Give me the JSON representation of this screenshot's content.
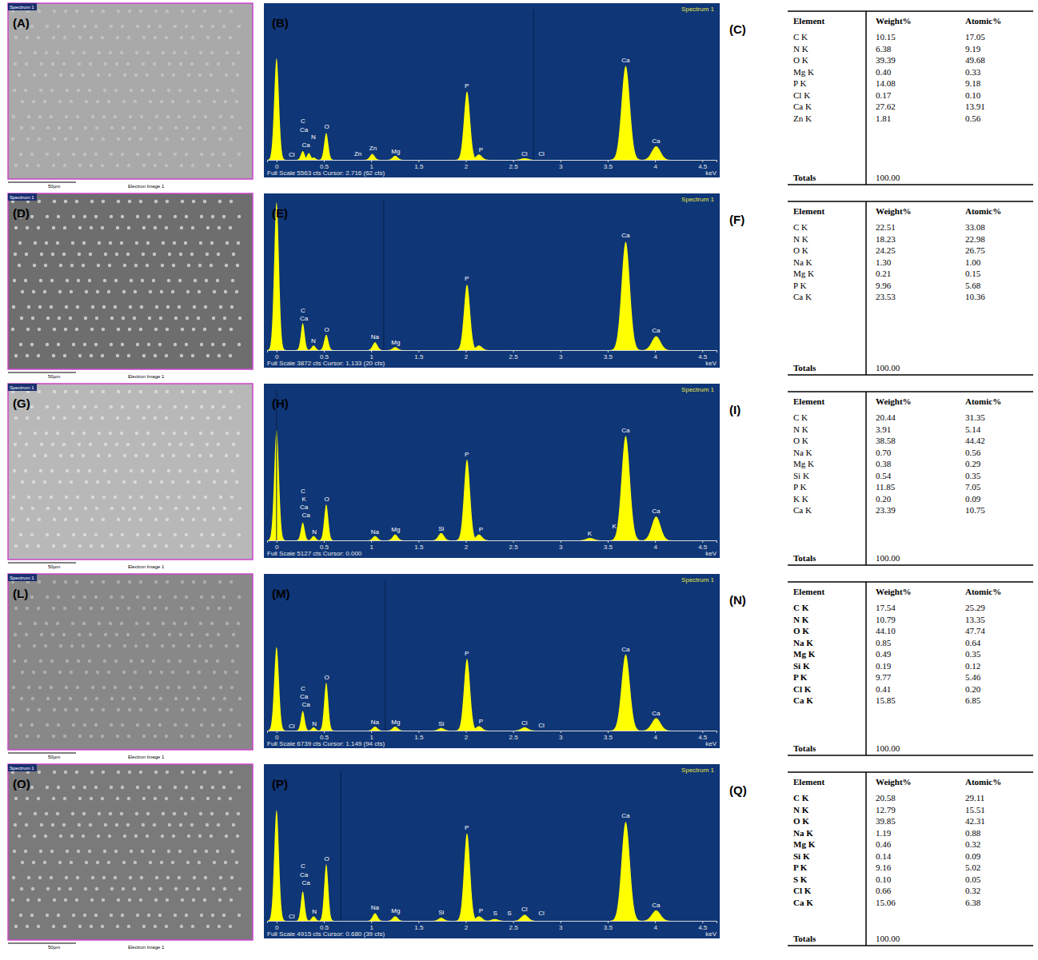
{
  "chart_data": [
    {
      "type": "area",
      "label": "(B)",
      "title": "Spectrum 1",
      "xlabel": "keV",
      "color": "#ffff00",
      "x": [
        0,
        0.277,
        0.341,
        0.392,
        0.525,
        1.012,
        1.254,
        2.013,
        2.139,
        2.622,
        3.69,
        4.012
      ],
      "values": [
        3780,
        330,
        250,
        90,
        1000,
        220,
        150,
        2550,
        200,
        60,
        3500,
        510
      ],
      "xlim": [
        -0.1,
        4.65
      ],
      "xticks": [
        0,
        0.5,
        1,
        1.5,
        2,
        2.5,
        3,
        3.5,
        4,
        4.5
      ],
      "ylim": [
        0,
        5563
      ],
      "tick_labels": "x",
      "cursor": 2.716,
      "footer": "Full Scale 5563 cts Cursor: 2.716 (62 cts)",
      "annotations": [
        {
          "text": "C",
          "x": 0.28,
          "y": 1350
        },
        {
          "text": "Ca",
          "x": 0.29,
          "y": 1050
        },
        {
          "text": "N",
          "x": 0.39,
          "y": 760
        },
        {
          "text": "Ca",
          "x": 0.31,
          "y": 460
        },
        {
          "text": "Cl",
          "x": 0.16,
          "y": 130
        },
        {
          "text": "O",
          "x": 0.53,
          "y": 1150
        },
        {
          "text": "Zn",
          "x": 0.86,
          "y": 150
        },
        {
          "text": "Zn",
          "x": 1.02,
          "y": 350
        },
        {
          "text": "Mg",
          "x": 1.26,
          "y": 250
        },
        {
          "text": "P",
          "x": 2.01,
          "y": 2650
        },
        {
          "text": "P",
          "x": 2.16,
          "y": 300
        },
        {
          "text": "Cl",
          "x": 2.62,
          "y": 150
        },
        {
          "text": "Cl",
          "x": 2.8,
          "y": 150
        },
        {
          "text": "Ca",
          "x": 3.69,
          "y": 3600
        },
        {
          "text": "Ca",
          "x": 4.01,
          "y": 620
        }
      ]
    },
    {
      "type": "area",
      "label": "(E)",
      "title": "Spectrum 1",
      "xlabel": "keV",
      "color": "#ffff00",
      "x": [
        0,
        0.277,
        0.392,
        0.525,
        1.041,
        1.254,
        2.013,
        2.139,
        3.69,
        4.012
      ],
      "values": [
        3830,
        700,
        120,
        400,
        200,
        80,
        1700,
        120,
        2810,
        360
      ],
      "xlim": [
        -0.1,
        4.65
      ],
      "xticks": [
        0,
        0.5,
        1,
        1.5,
        2,
        2.5,
        3,
        3.5,
        4,
        4.5
      ],
      "ylim": [
        0,
        3872
      ],
      "tick_labels": "x",
      "cursor": 1.133,
      "footer": "Full Scale 3872 cts Cursor: 1.133 (20 cts)",
      "annotations": [
        {
          "text": "C",
          "x": 0.28,
          "y": 970
        },
        {
          "text": "Ca",
          "x": 0.29,
          "y": 760
        },
        {
          "text": "N",
          "x": 0.39,
          "y": 180
        },
        {
          "text": "O",
          "x": 0.53,
          "y": 480
        },
        {
          "text": "Na",
          "x": 1.04,
          "y": 290
        },
        {
          "text": "Mg",
          "x": 1.26,
          "y": 140
        },
        {
          "text": "P",
          "x": 2.01,
          "y": 1790
        },
        {
          "text": "Ca",
          "x": 3.69,
          "y": 2910
        },
        {
          "text": "Ca",
          "x": 4.01,
          "y": 460
        }
      ]
    },
    {
      "type": "area",
      "label": "(H)",
      "title": "Spectrum 1",
      "xlabel": "keV",
      "color": "#ffff00",
      "x": [
        0,
        0.277,
        0.392,
        0.525,
        1.041,
        1.254,
        1.74,
        2.013,
        2.139,
        3.313,
        3.69,
        4.012
      ],
      "values": [
        3800,
        610,
        150,
        1230,
        150,
        200,
        250,
        2770,
        200,
        80,
        3590,
        820
      ],
      "xlim": [
        -0.1,
        4.65
      ],
      "xticks": [
        0,
        0.5,
        1,
        1.5,
        2,
        2.5,
        3,
        3.5,
        4,
        4.5
      ],
      "ylim": [
        0,
        5127
      ],
      "tick_labels": "x",
      "cursor": 0.0,
      "footer": "Full Scale 5127 cts Cursor: 0.000",
      "annotations": [
        {
          "text": "C",
          "x": 0.28,
          "y": 1600
        },
        {
          "text": "K",
          "x": 0.29,
          "y": 1330
        },
        {
          "text": "Ca",
          "x": 0.29,
          "y": 1060
        },
        {
          "text": "Ca",
          "x": 0.31,
          "y": 790
        },
        {
          "text": "N",
          "x": 0.4,
          "y": 230
        },
        {
          "text": "O",
          "x": 0.53,
          "y": 1330
        },
        {
          "text": "Na",
          "x": 1.04,
          "y": 230
        },
        {
          "text": "Mg",
          "x": 1.26,
          "y": 290
        },
        {
          "text": "Si",
          "x": 1.74,
          "y": 340
        },
        {
          "text": "P",
          "x": 2.01,
          "y": 2870
        },
        {
          "text": "P",
          "x": 2.16,
          "y": 290
        },
        {
          "text": "K",
          "x": 3.31,
          "y": 170
        },
        {
          "text": "K",
          "x": 3.57,
          "y": 420
        },
        {
          "text": "Ca",
          "x": 3.69,
          "y": 3690
        },
        {
          "text": "Ca",
          "x": 4.01,
          "y": 920
        }
      ]
    },
    {
      "type": "area",
      "label": "(M)",
      "title": "Spectrum 1",
      "xlabel": "keV",
      "color": "#ffff00",
      "x": [
        0,
        0.277,
        0.392,
        0.525,
        1.041,
        1.254,
        1.74,
        2.013,
        2.139,
        2.622,
        3.69,
        4.012
      ],
      "values": [
        3770,
        880,
        150,
        2160,
        180,
        180,
        120,
        3240,
        200,
        150,
        3440,
        560
      ],
      "xlim": [
        -0.1,
        4.65
      ],
      "xticks": [
        0,
        0.5,
        1,
        1.5,
        2,
        2.5,
        3,
        3.5,
        4,
        4.5
      ],
      "ylim": [
        0,
        6739
      ],
      "tick_labels": "x",
      "cursor": 1.149,
      "footer": "Full Scale 6739 cts Cursor: 1.149 (94 cts)",
      "annotations": [
        {
          "text": "C",
          "x": 0.28,
          "y": 1800
        },
        {
          "text": "Ca",
          "x": 0.29,
          "y": 1440
        },
        {
          "text": "Ca",
          "x": 0.31,
          "y": 1080
        },
        {
          "text": "Cl",
          "x": 0.16,
          "y": 110
        },
        {
          "text": "N",
          "x": 0.4,
          "y": 200
        },
        {
          "text": "O",
          "x": 0.53,
          "y": 2300
        },
        {
          "text": "Na",
          "x": 1.04,
          "y": 300
        },
        {
          "text": "Mg",
          "x": 1.26,
          "y": 300
        },
        {
          "text": "Si",
          "x": 1.74,
          "y": 230
        },
        {
          "text": "P",
          "x": 2.01,
          "y": 3360
        },
        {
          "text": "P",
          "x": 2.16,
          "y": 310
        },
        {
          "text": "Cl",
          "x": 2.62,
          "y": 260
        },
        {
          "text": "Cl",
          "x": 2.8,
          "y": 160
        },
        {
          "text": "Ca",
          "x": 3.69,
          "y": 3560
        },
        {
          "text": "Ca",
          "x": 4.01,
          "y": 680
        }
      ]
    },
    {
      "type": "area",
      "label": "(P)",
      "title": "Spectrum 1",
      "xlabel": "keV",
      "color": "#ffff00",
      "x": [
        0,
        0.277,
        0.392,
        0.525,
        1.041,
        1.254,
        1.74,
        2.013,
        2.139,
        2.307,
        2.622,
        3.69,
        4.012
      ],
      "values": [
        3640,
        970,
        150,
        1860,
        250,
        150,
        100,
        2880,
        150,
        60,
        200,
        3260,
        340
      ],
      "xlim": [
        -0.1,
        4.65
      ],
      "xticks": [
        0,
        0.5,
        1,
        1.5,
        2,
        2.5,
        3,
        3.5,
        4,
        4.5
      ],
      "ylim": [
        0,
        4915
      ],
      "tick_labels": "x",
      "cursor": 0.68,
      "footer": "Full Scale 4915 cts Cursor: 0.680 (39 cts)",
      "annotations": [
        {
          "text": "C",
          "x": 0.28,
          "y": 1720
        },
        {
          "text": "Ca",
          "x": 0.29,
          "y": 1450
        },
        {
          "text": "Ca",
          "x": 0.31,
          "y": 1180
        },
        {
          "text": "Cl",
          "x": 0.16,
          "y": 90
        },
        {
          "text": "N",
          "x": 0.4,
          "y": 230
        },
        {
          "text": "O",
          "x": 0.53,
          "y": 1970
        },
        {
          "text": "Na",
          "x": 1.04,
          "y": 360
        },
        {
          "text": "Mg",
          "x": 1.26,
          "y": 260
        },
        {
          "text": "Si",
          "x": 1.74,
          "y": 210
        },
        {
          "text": "P",
          "x": 2.01,
          "y": 2990
        },
        {
          "text": "P",
          "x": 2.16,
          "y": 260
        },
        {
          "text": "S",
          "x": 2.31,
          "y": 170
        },
        {
          "text": "S",
          "x": 2.46,
          "y": 170
        },
        {
          "text": "Cl",
          "x": 2.62,
          "y": 310
        },
        {
          "text": "Cl",
          "x": 2.8,
          "y": 170
        },
        {
          "text": "Ca",
          "x": 3.69,
          "y": 3370
        },
        {
          "text": "Ca",
          "x": 4.01,
          "y": 450
        }
      ]
    }
  ],
  "panels": [
    {
      "sem_letter": "(A)",
      "sem_tag": "Spectrum 1",
      "scale_label": "50µm",
      "image_label": "Electron Image 1",
      "table_letter": "(C)"
    },
    {
      "sem_letter": "(D)",
      "sem_tag": "Spectrum 1",
      "scale_label": "50µm",
      "image_label": "Electron Image 1",
      "table_letter": "(F)"
    },
    {
      "sem_letter": "(G)",
      "sem_tag": "Spectrum 1",
      "scale_label": "50µm",
      "image_label": "Electron Image 1",
      "table_letter": "(I)"
    },
    {
      "sem_letter": "(L)",
      "sem_tag": "Spectrum 1",
      "scale_label": "50µm",
      "image_label": "Electron Image 1",
      "table_letter": "(N)"
    },
    {
      "sem_letter": "(O)",
      "sem_tag": "Spectrum 1",
      "scale_label": "50µm",
      "image_label": "Electron Image 1",
      "table_letter": "(Q)"
    }
  ],
  "tables": [
    {
      "columns": [
        "Element",
        "Weight%",
        "Atomic%"
      ],
      "rows": [
        [
          "C K",
          "10.15",
          "17.05"
        ],
        [
          "N K",
          "6.38",
          "9.19"
        ],
        [
          "O K",
          "39.39",
          "49.68"
        ],
        [
          "Mg K",
          "0.40",
          "0.33"
        ],
        [
          "P K",
          "14.08",
          "9.18"
        ],
        [
          "Cl K",
          "0.17",
          "0.10"
        ],
        [
          "Ca K",
          "27.62",
          "13.91"
        ],
        [
          "Zn K",
          "1.81",
          "0.56"
        ]
      ],
      "total_label": "Totals",
      "total": "100.00"
    },
    {
      "columns": [
        "Element",
        "Weight%",
        "Atomic%"
      ],
      "rows": [
        [
          "C K",
          "22.51",
          "33.08"
        ],
        [
          "N K",
          "18.23",
          "22.98"
        ],
        [
          "O K",
          "24.25",
          "26.75"
        ],
        [
          "Na K",
          "1.30",
          "1.00"
        ],
        [
          "Mg K",
          "0.21",
          "0.15"
        ],
        [
          "P K",
          "9.96",
          "5.68"
        ],
        [
          "Ca K",
          "23.53",
          "10.36"
        ]
      ],
      "total_label": "Totals",
      "total": "100.00"
    },
    {
      "columns": [
        "Element",
        "Weight%",
        "Atomic%"
      ],
      "rows": [
        [
          "C K",
          "20.44",
          "31.35"
        ],
        [
          "N K",
          "3.91",
          "5.14"
        ],
        [
          "O K",
          "38.58",
          "44.42"
        ],
        [
          "Na K",
          "0.70",
          "0.56"
        ],
        [
          "Mg K",
          "0.38",
          "0.29"
        ],
        [
          "Si K",
          "0.54",
          "0.35"
        ],
        [
          "P K",
          "11.85",
          "7.05"
        ],
        [
          "K K",
          "0.20",
          "0.09"
        ],
        [
          "Ca K",
          "23.39",
          "10.75"
        ]
      ],
      "total_label": "Totals",
      "total": "100.00"
    },
    {
      "columns": [
        "Element",
        "Weight%",
        "Atomic%"
      ],
      "rows": [
        [
          "C K",
          "17.54",
          "25.29"
        ],
        [
          "N K",
          "10.79",
          "13.35"
        ],
        [
          "O K",
          "44.10",
          "47.74"
        ],
        [
          "Na K",
          "0.85",
          "0.64"
        ],
        [
          "Mg K",
          "0.49",
          "0.35"
        ],
        [
          "Si K",
          "0.19",
          "0.12"
        ],
        [
          "P K",
          "9.77",
          "5.46"
        ],
        [
          "Cl K",
          "0.41",
          "0.20"
        ],
        [
          "Ca K",
          "15.85",
          "6.85"
        ]
      ],
      "total_label": "Totals",
      "total": "100.00"
    },
    {
      "columns": [
        "Element",
        "Weight%",
        "Atomic%"
      ],
      "rows": [
        [
          "C K",
          "20.58",
          "29.11"
        ],
        [
          "N K",
          "12.79",
          "15.51"
        ],
        [
          "O K",
          "39.85",
          "42.31"
        ],
        [
          "Na K",
          "1.19",
          "0.88"
        ],
        [
          "Mg K",
          "0.46",
          "0.32"
        ],
        [
          "Si K",
          "0.14",
          "0.09"
        ],
        [
          "P K",
          "9.16",
          "5.02"
        ],
        [
          "S K",
          "0.10",
          "0.05"
        ],
        [
          "Cl K",
          "0.66",
          "0.32"
        ],
        [
          "Ca K",
          "15.06",
          "6.38"
        ]
      ],
      "total_label": "Totals",
      "total": "100.00"
    }
  ]
}
